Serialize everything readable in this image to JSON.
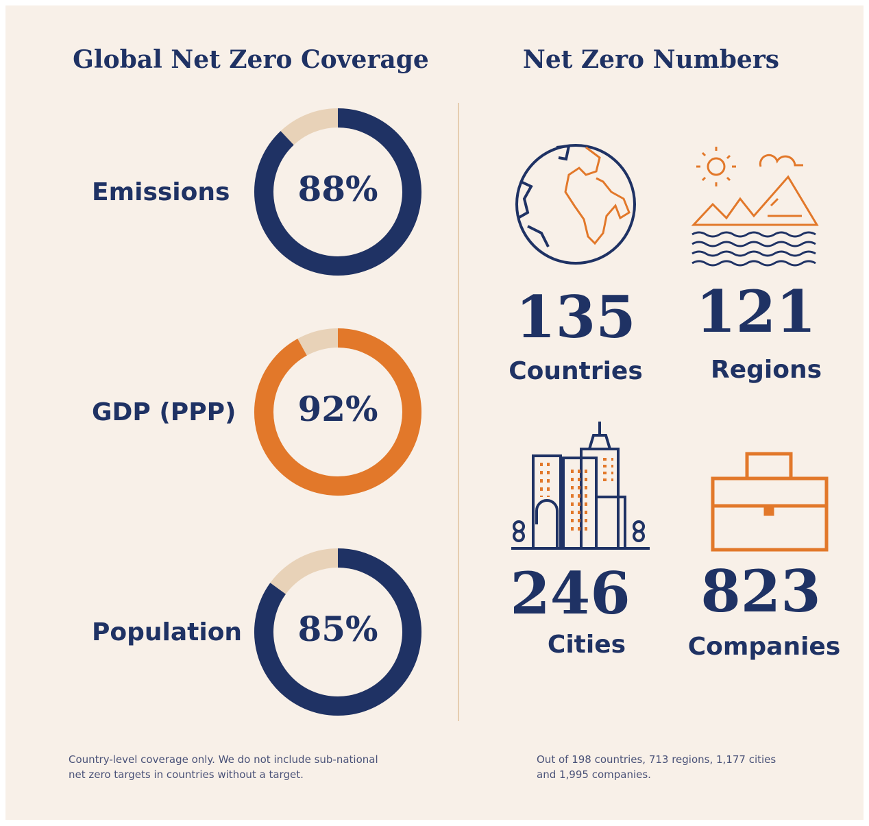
{
  "left_title": "Global Net Zero Coverage",
  "chart_data": [
    {
      "type": "donut",
      "label": "Emissions",
      "values": [
        88
      ],
      "value_labels": [
        "88%"
      ],
      "color": "#1f3264",
      "rest_color": "#e8d2b8"
    },
    {
      "type": "donut",
      "label": "GDP (PPP)",
      "values": [
        92
      ],
      "value_labels": [
        "92%"
      ],
      "color": "#e2782a",
      "rest_color": "#e8d2b8"
    },
    {
      "type": "donut",
      "label": "Population",
      "values": [
        85
      ],
      "value_labels": [
        "85%"
      ],
      "color": "#1f3264",
      "rest_color": "#e8d2b8"
    }
  ],
  "numbers": {
    "title": "Net Zero Numbers",
    "items": [
      {
        "value": 135,
        "label": "Countries"
      },
      {
        "value": 121,
        "label": "Regions"
      },
      {
        "value": 246,
        "label": "Cities"
      },
      {
        "value": 823,
        "label": "Companies"
      }
    ]
  },
  "notes": [
    "Country-level coverage only. We do not include sub-national net zero targets in countries without a target.",
    "Out of 198 countries, 713 regions, 1,177 cities and 1,995 companies."
  ]
}
